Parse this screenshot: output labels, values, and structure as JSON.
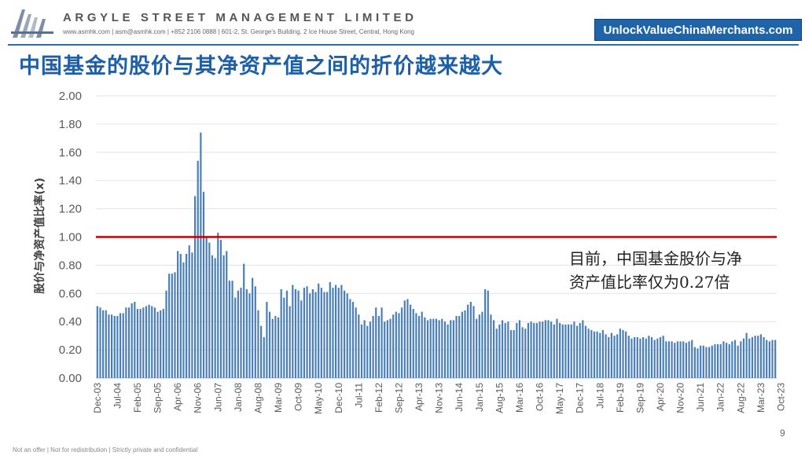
{
  "header": {
    "company_name": "ARGYLE STREET MANAGEMENT LIMITED",
    "contact": "www.asmhk.com | asm@asmhk.com | +852 2106 0888 | 601-2, St. George's Building, 2 Ice House Street, Central, Hong Kong",
    "promo_label": "UnlockValueChinaMerchants.com"
  },
  "title": "中国基金的股价与其净资产值之间的折价越来越大",
  "annotation": {
    "line1": "目前，中国基金股价与净",
    "line2": "资产值比率仅为0.27倍"
  },
  "page_number": "9",
  "footer": "Not an offer | Not for redistribution | Strictly private and confidential",
  "colors": {
    "bar": "#4a7ebb",
    "reference_line": "#c00000",
    "title": "#1f5fa6",
    "promo_bg": "#1f63a8"
  },
  "chart_data": {
    "type": "bar",
    "ylabel": "股价与净资产值比率(x)",
    "ylim": [
      0,
      2.0
    ],
    "yticks": [
      "0.00",
      "0.20",
      "0.40",
      "0.60",
      "0.80",
      "1.00",
      "1.20",
      "1.40",
      "1.60",
      "1.80",
      "2.00"
    ],
    "grid": true,
    "reference_line": 1.0,
    "xtick_labels": [
      "Dec-03",
      "Jul-04",
      "Feb-05",
      "Sep-05",
      "Apr-06",
      "Nov-06",
      "Jun-07",
      "Jan-08",
      "Aug-08",
      "Mar-09",
      "Oct-09",
      "May-10",
      "Dec-10",
      "Jul-11",
      "Feb-12",
      "Sep-12",
      "Apr-13",
      "Nov-13",
      "Jun-14",
      "Jan-15",
      "Aug-15",
      "Mar-16",
      "Oct-16",
      "May-17",
      "Dec-17",
      "Jul-18",
      "Feb-19",
      "Sep-19",
      "Apr-20",
      "Nov-20",
      "Jun-21",
      "Jan-22",
      "Aug-22",
      "Mar-23",
      "Oct-23"
    ],
    "start_month": "Dec-03",
    "values": [
      0.51,
      0.5,
      0.48,
      0.48,
      0.45,
      0.45,
      0.44,
      0.44,
      0.46,
      0.46,
      0.5,
      0.5,
      0.53,
      0.54,
      0.49,
      0.49,
      0.5,
      0.51,
      0.52,
      0.51,
      0.5,
      0.47,
      0.48,
      0.49,
      0.62,
      0.74,
      0.74,
      0.75,
      0.9,
      0.88,
      0.82,
      0.88,
      0.94,
      0.89,
      1.29,
      1.54,
      1.74,
      1.32,
      1.0,
      0.96,
      0.87,
      0.85,
      1.03,
      0.98,
      0.87,
      0.9,
      0.69,
      0.69,
      0.57,
      0.62,
      0.64,
      0.81,
      0.63,
      0.6,
      0.71,
      0.65,
      0.48,
      0.37,
      0.29,
      0.54,
      0.47,
      0.42,
      0.44,
      0.43,
      0.63,
      0.57,
      0.62,
      0.51,
      0.66,
      0.63,
      0.62,
      0.55,
      0.64,
      0.65,
      0.6,
      0.63,
      0.61,
      0.67,
      0.64,
      0.61,
      0.61,
      0.68,
      0.64,
      0.66,
      0.64,
      0.66,
      0.62,
      0.6,
      0.56,
      0.54,
      0.5,
      0.45,
      0.38,
      0.41,
      0.37,
      0.4,
      0.44,
      0.5,
      0.44,
      0.5,
      0.4,
      0.41,
      0.42,
      0.45,
      0.47,
      0.46,
      0.5,
      0.55,
      0.56,
      0.52,
      0.49,
      0.46,
      0.44,
      0.47,
      0.43,
      0.41,
      0.42,
      0.42,
      0.42,
      0.41,
      0.42,
      0.4,
      0.38,
      0.41,
      0.41,
      0.44,
      0.44,
      0.47,
      0.48,
      0.52,
      0.54,
      0.51,
      0.42,
      0.45,
      0.47,
      0.63,
      0.62,
      0.45,
      0.41,
      0.35,
      0.38,
      0.41,
      0.39,
      0.4,
      0.34,
      0.34,
      0.39,
      0.41,
      0.36,
      0.35,
      0.39,
      0.4,
      0.39,
      0.39,
      0.4,
      0.4,
      0.41,
      0.41,
      0.4,
      0.38,
      0.42,
      0.39,
      0.38,
      0.38,
      0.38,
      0.38,
      0.4,
      0.37,
      0.39,
      0.41,
      0.37,
      0.35,
      0.34,
      0.33,
      0.33,
      0.32,
      0.34,
      0.31,
      0.29,
      0.32,
      0.3,
      0.31,
      0.35,
      0.34,
      0.33,
      0.3,
      0.28,
      0.29,
      0.29,
      0.28,
      0.29,
      0.28,
      0.3,
      0.29,
      0.27,
      0.28,
      0.29,
      0.3,
      0.26,
      0.26,
      0.26,
      0.25,
      0.26,
      0.26,
      0.26,
      0.25,
      0.26,
      0.27,
      0.22,
      0.21,
      0.23,
      0.23,
      0.22,
      0.22,
      0.23,
      0.24,
      0.24,
      0.24,
      0.26,
      0.25,
      0.24,
      0.26,
      0.27,
      0.23,
      0.26,
      0.28,
      0.32,
      0.28,
      0.29,
      0.3,
      0.3,
      0.31,
      0.29,
      0.27,
      0.26,
      0.27,
      0.27
    ]
  }
}
